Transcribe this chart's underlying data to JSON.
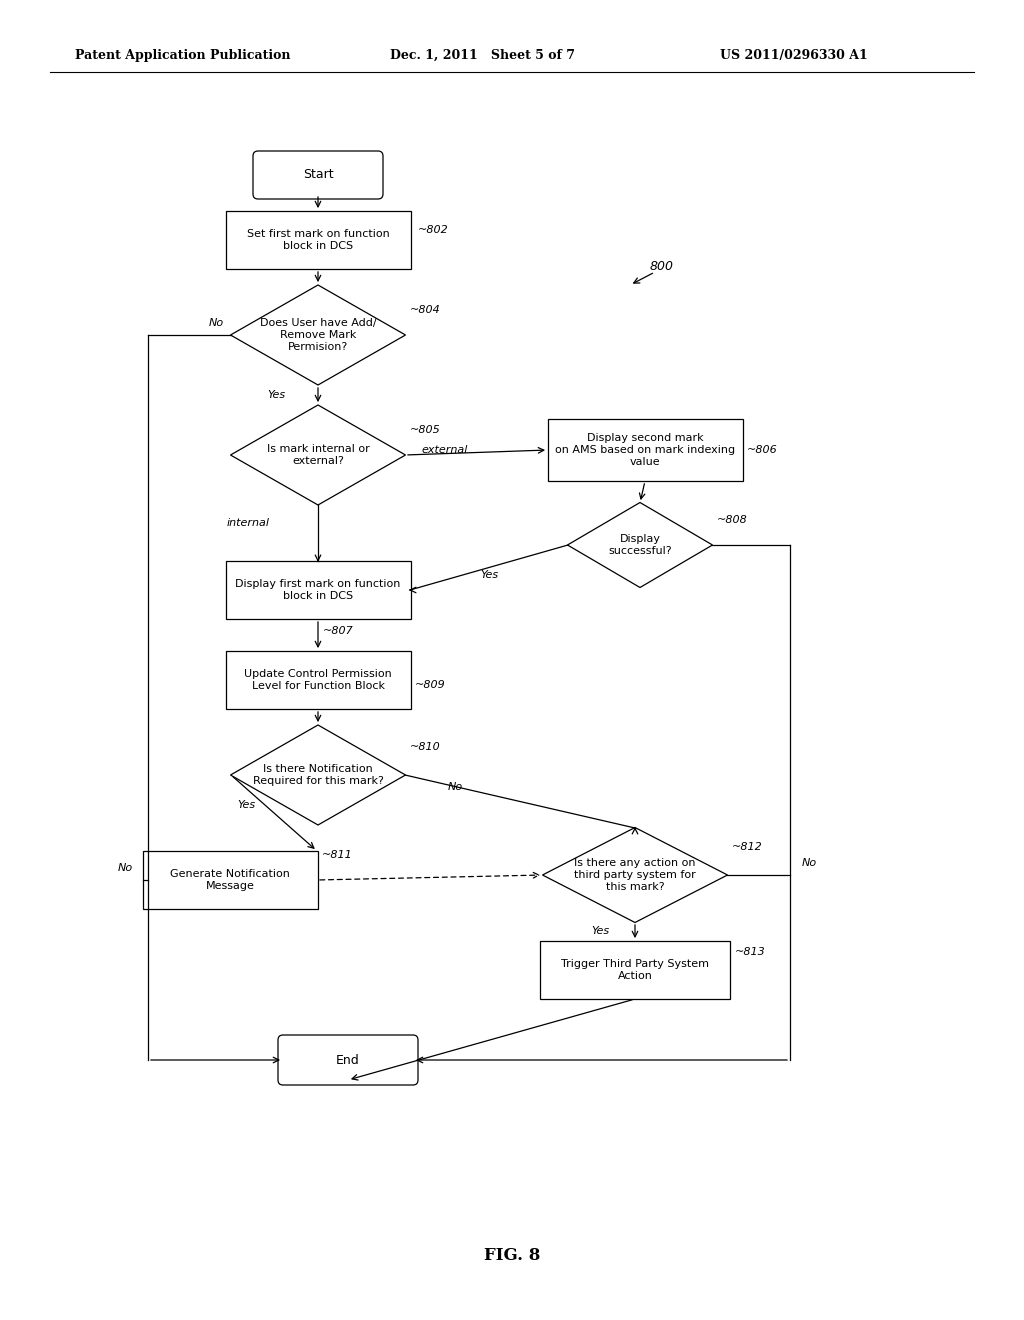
{
  "header_left": "Patent Application Publication",
  "header_mid": "Dec. 1, 2011   Sheet 5 of 7",
  "header_right": "US 2011/0296330 A1",
  "fig_label": "FIG. 8",
  "background": "#ffffff"
}
